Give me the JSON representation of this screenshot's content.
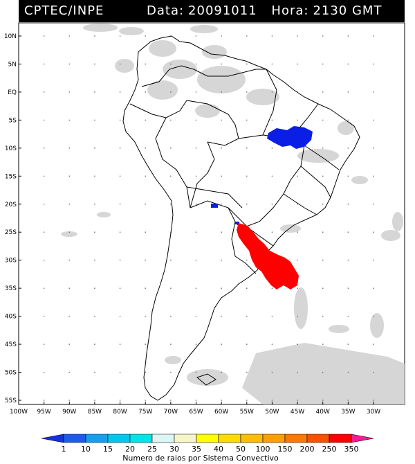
{
  "header": {
    "source": "CPTEC/INPE",
    "date_label": "Data:",
    "date_value": "20091011",
    "time_label": "Hora:",
    "time_value": "2130 GMT"
  },
  "map": {
    "lat_labels": [
      "10N",
      "5N",
      "EQ",
      "5S",
      "10S",
      "15S",
      "20S",
      "25S",
      "30S",
      "35S",
      "40S",
      "45S",
      "50S",
      "55S"
    ],
    "lon_labels": [
      "100W",
      "95W",
      "90W",
      "85W",
      "80W",
      "75W",
      "70W",
      "65W",
      "60W",
      "55W",
      "50W",
      "45W",
      "40W",
      "35W",
      "30W"
    ],
    "grid": true,
    "features": [
      {
        "name": "convective-system-northeast-brazil",
        "color": "#0a1ee6"
      },
      {
        "name": "convective-system-south-brazil-uruguay",
        "color": "#ff0000"
      }
    ]
  },
  "colorbar": {
    "labels": [
      "1",
      "10",
      "15",
      "20",
      "25",
      "30",
      "35",
      "40",
      "50",
      "100",
      "150",
      "200",
      "250",
      "350"
    ],
    "colors": [
      "#1432dc",
      "#1e5af0",
      "#14a0f0",
      "#00c8f0",
      "#00e6e6",
      "#dcf5f5",
      "#f5f5c8",
      "#ffff00",
      "#ffdc00",
      "#ffbe00",
      "#ffa000",
      "#ff7800",
      "#ff5000",
      "#ff0000",
      "#f01e96"
    ],
    "title": "Numero de raios por Sistema Convectivo"
  }
}
